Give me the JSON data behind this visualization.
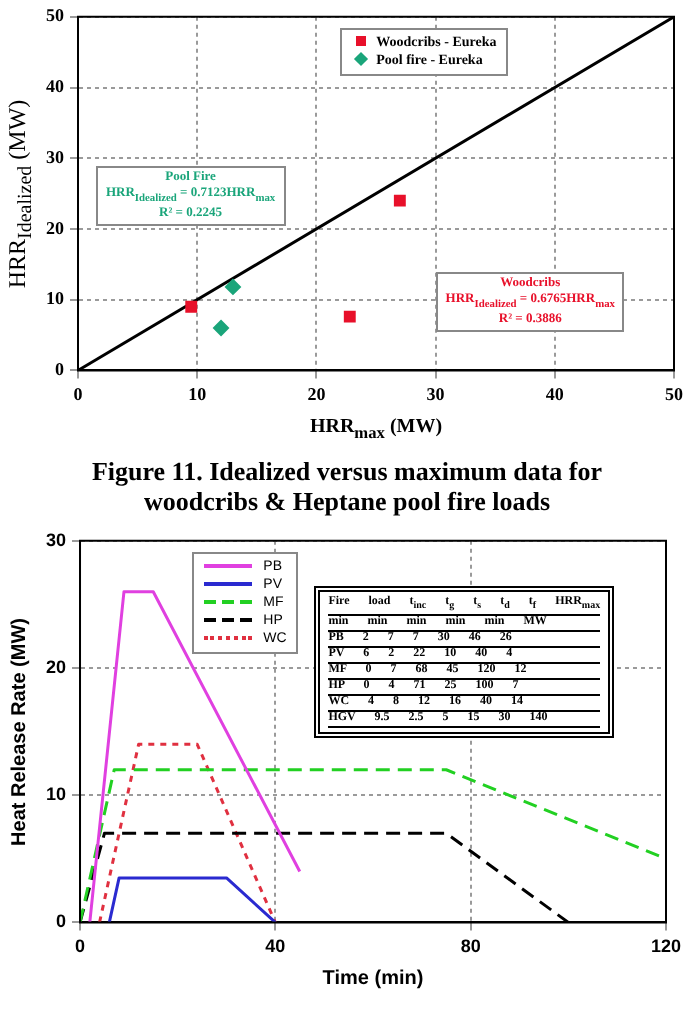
{
  "chart_data": [
    {
      "type": "scatter",
      "xlabel": "HRR$_{max}$ (MW)",
      "ylabel": "HRR$_{Idealized}$ (MW)",
      "xlim": [
        0,
        50
      ],
      "ylim": [
        0,
        50
      ],
      "xticks": [
        0,
        10,
        20,
        30,
        40,
        50
      ],
      "yticks": [
        0,
        10,
        20,
        30,
        40,
        50
      ],
      "grid": true,
      "legend": "top",
      "annotations": [
        "Pool Fire",
        "HRR$_{Idealized}$ = 0.7123HRR$_{max}$",
        "R² = 0.2245",
        "Woodcribs",
        "HRR$_{Idealized}$ = 0.6765HRR$_{max}$",
        "R² = 0.3886",
        "Figure 11. Idealized versus maximum data for woodcribs & Heptane pool fire loads"
      ],
      "series": [
        {
          "name": "Woodcribs - Eureka",
          "color": "#e8102a",
          "marker": "square",
          "x": [
            9.5,
            22.8,
            27
          ],
          "values": [
            9,
            7.6,
            24
          ]
        },
        {
          "name": "Pool fire - Eureka",
          "color": "#1aa57a",
          "marker": "diamond",
          "x": [
            12,
            13
          ],
          "values": [
            6,
            11.8
          ]
        },
        {
          "type": "line",
          "color": "#000000",
          "marker": "none",
          "line_style": "solid",
          "x": [
            0,
            50
          ],
          "values": [
            0,
            50
          ]
        }
      ]
    },
    {
      "type": "line",
      "xlabel": "Time (min)",
      "ylabel": "Heat Release Rate (MW)",
      "xlim": [
        0,
        120
      ],
      "ylim": [
        0,
        30
      ],
      "xticks": [
        0,
        40,
        80,
        120
      ],
      "yticks": [
        0,
        10,
        20,
        30
      ],
      "grid": true,
      "legend": "top left",
      "marker": "none",
      "annotations": [
        "Fire load t$_{inc}$ t$_{g}$ t$_{s}$ t$_{d}$ t$_{f}$ HRR$_{max}$",
        "min min min min min MW",
        "PB 2 7 7 30 46 26",
        "PV 6 2 22 10 40 4",
        "MF 0 7 68 45 120 12",
        "HP 0 4 71 25 100 7",
        "WC 4 8 12 16 40 14",
        "HGV 9.5 2.5 5 15 30 140"
      ],
      "series": [
        {
          "name": "PB",
          "color": "#e040e0",
          "line_style": "solid",
          "x": [
            2,
            9,
            15,
            45
          ],
          "values": [
            0,
            26,
            26,
            4
          ]
        },
        {
          "name": "PV",
          "color": "#2a2ad0",
          "line_style": "solid",
          "x": [
            6,
            8,
            30,
            40
          ],
          "values": [
            0,
            3.5,
            3.5,
            0
          ]
        },
        {
          "name": "MF",
          "color": "#22d022",
          "line_style": "dashed",
          "x": [
            0,
            7,
            75,
            120
          ],
          "values": [
            0,
            12,
            12,
            5
          ]
        },
        {
          "name": "HP",
          "color": "#000000",
          "line_style": "dashed",
          "x": [
            0,
            5,
            75,
            100
          ],
          "values": [
            0,
            7,
            7,
            0
          ]
        },
        {
          "name": "WC",
          "color": "#e03040",
          "line_style": "dotted",
          "x": [
            4,
            12,
            24,
            40
          ],
          "values": [
            0,
            14,
            14,
            0
          ]
        }
      ]
    }
  ]
}
